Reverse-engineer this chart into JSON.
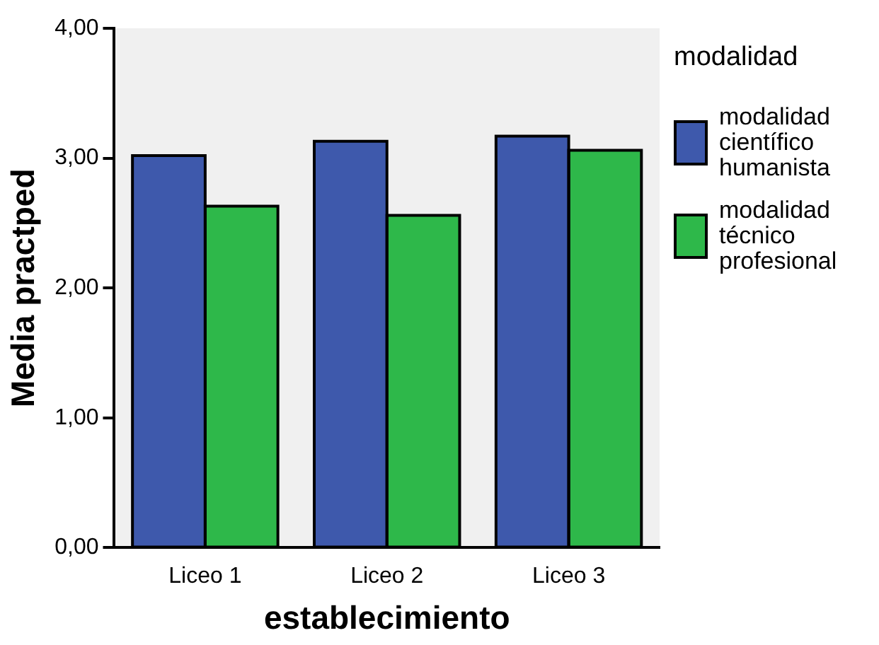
{
  "chart_data": {
    "type": "bar",
    "xlabel": "establecimiento",
    "ylabel": "Media practped",
    "legend_title": "modalidad",
    "categories": [
      "Liceo 1",
      "Liceo 2",
      "Liceo 3"
    ],
    "series": [
      {
        "name": "modalidad científico humanista",
        "color": "#3e59ac",
        "values": [
          3.02,
          3.13,
          3.17
        ]
      },
      {
        "name": "modalidad técnico profesional",
        "color": "#2eb84a",
        "values": [
          2.63,
          2.56,
          3.06
        ]
      }
    ],
    "ylim": [
      0,
      4
    ],
    "yticks": [
      {
        "value": 0,
        "label": "0,00"
      },
      {
        "value": 1,
        "label": "1,00"
      },
      {
        "value": 2,
        "label": "2,00"
      },
      {
        "value": 3,
        "label": "3,00"
      },
      {
        "value": 4,
        "label": "4,00"
      }
    ],
    "grid": false,
    "legend": "right"
  }
}
